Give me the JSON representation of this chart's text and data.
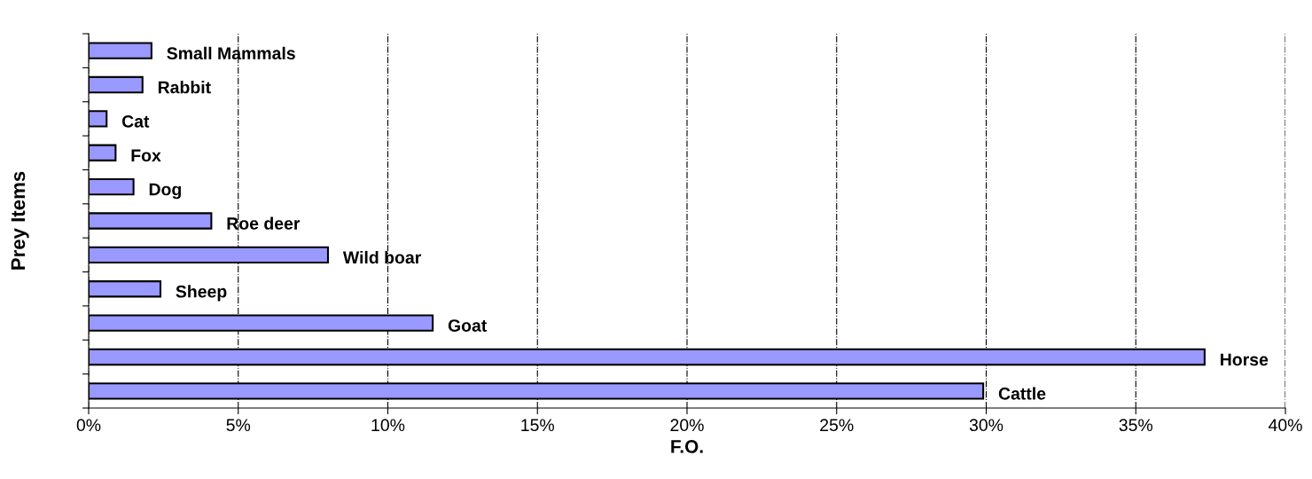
{
  "chart_data": {
    "type": "bar",
    "orientation": "horizontal",
    "xlabel": "F.O.",
    "ylabel": "Prey Items",
    "categories": [
      "Small Mammals",
      "Rabbit",
      "Cat",
      "Fox",
      "Dog",
      "Roe deer",
      "Wild boar",
      "Sheep",
      "Goat",
      "Horse",
      "Cattle"
    ],
    "values": [
      2.1,
      1.8,
      0.6,
      0.9,
      1.5,
      4.1,
      8.0,
      2.4,
      11.5,
      37.3,
      29.9
    ],
    "color": "#9999ff",
    "xlim": [
      0,
      40
    ],
    "xticks": [
      {
        "value": 0,
        "label": "0%"
      },
      {
        "value": 5,
        "label": "5%"
      },
      {
        "value": 10,
        "label": "10%"
      },
      {
        "value": 15,
        "label": "15%"
      },
      {
        "value": 20,
        "label": "20%"
      },
      {
        "value": 25,
        "label": "25%"
      },
      {
        "value": 30,
        "label": "30%"
      },
      {
        "value": 35,
        "label": "35%"
      },
      {
        "value": 40,
        "label": "40%"
      }
    ],
    "grid": "x",
    "legend": false
  }
}
